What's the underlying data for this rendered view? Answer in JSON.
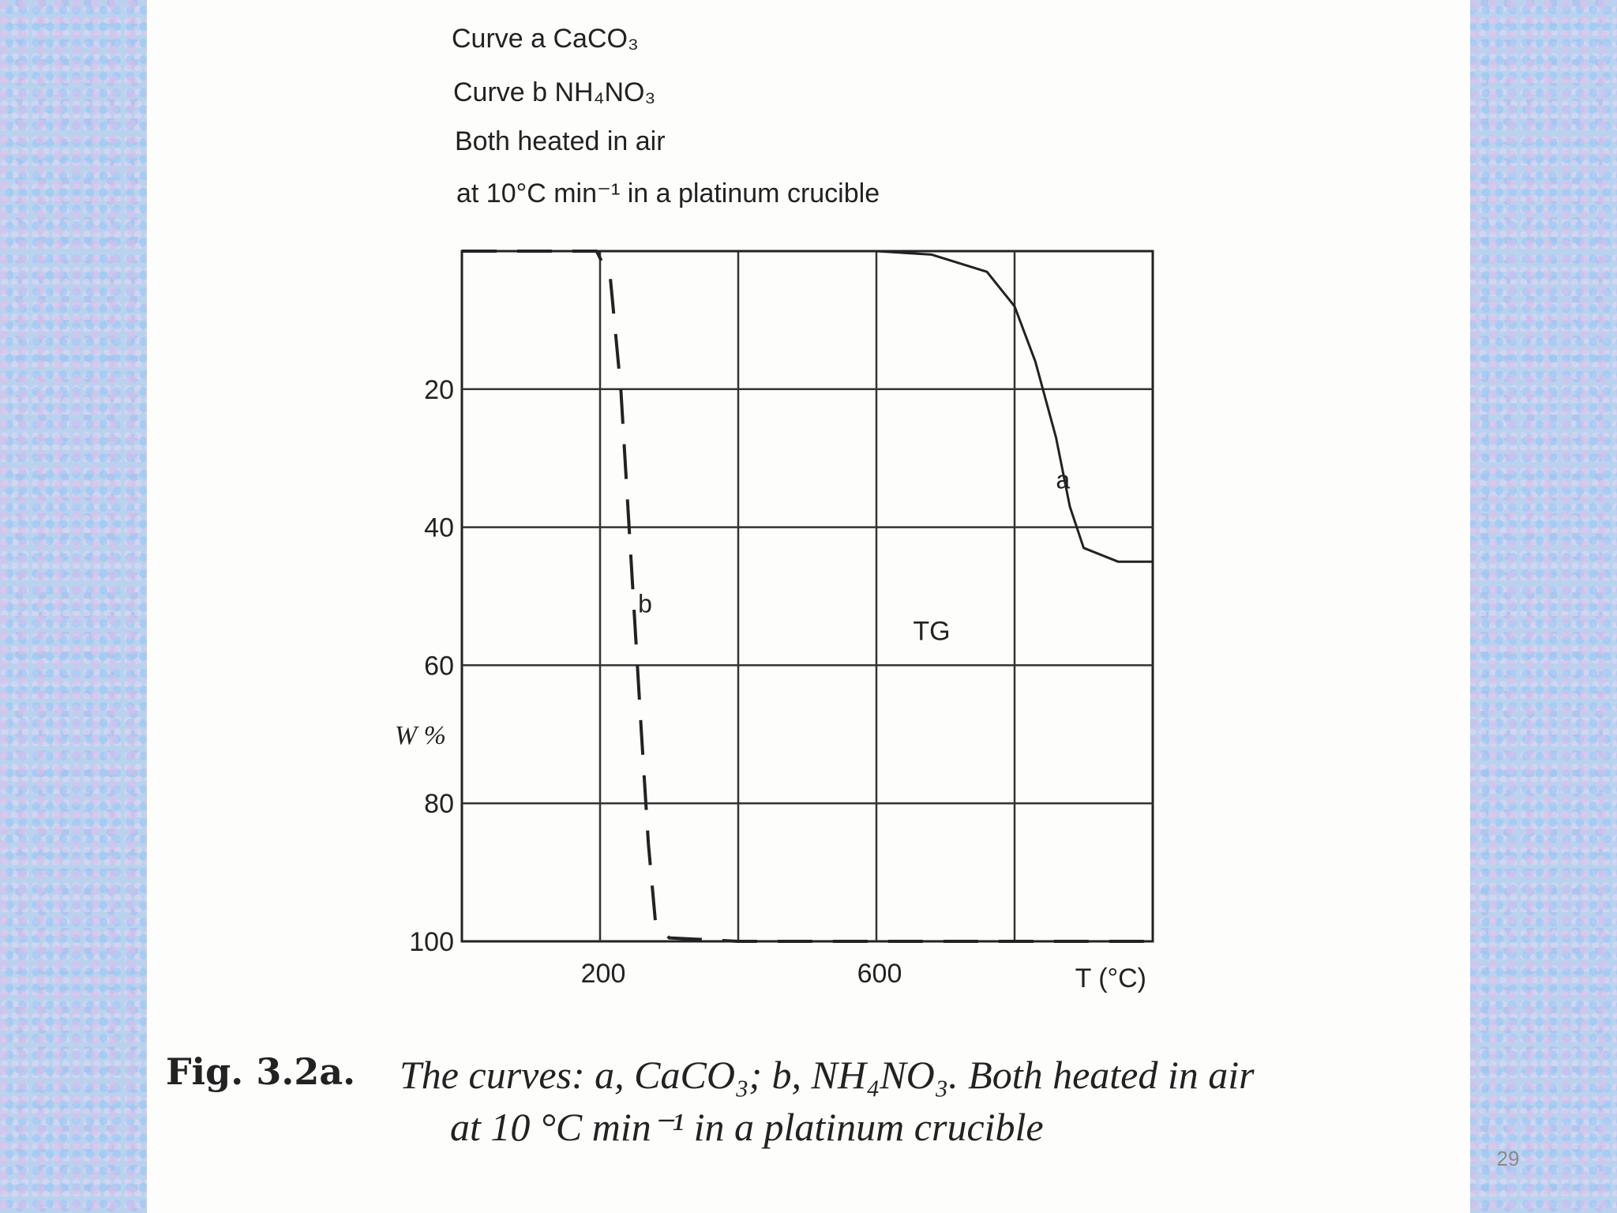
{
  "slide_number": "29",
  "header_lines": [
    "Curve a  CaCO₃",
    "Curve b  NH₄NO₃",
    "Both heated in air",
    "at 10°C min⁻¹ in a platinum crucible"
  ],
  "caption": {
    "label": "Fig. 3.2a.",
    "line1": "The curves: a, CaCO₃; b, NH₄NO₃. Both heated in air",
    "line2": "at 10 °C min⁻¹ in a platinum crucible"
  },
  "colors": {
    "background_pattern": "#b9d3ee",
    "slide": "#fdfdfb",
    "ink": "#222222"
  },
  "chart_data": {
    "type": "line",
    "title": "",
    "xlabel": "T (°C)",
    "ylabel": "W %",
    "xlim": [
      0,
      1000
    ],
    "ylim": [
      0,
      100
    ],
    "y_inverted": true,
    "x_ticks": [
      200,
      600
    ],
    "x_tick_labels": [
      "200",
      "600"
    ],
    "y_ticks": [
      20,
      40,
      60,
      80,
      100
    ],
    "y_tick_labels": [
      "20",
      "40",
      "60",
      "80",
      "100"
    ],
    "x_gridlines": [
      200,
      400,
      600,
      800
    ],
    "y_gridlines": [
      20,
      40,
      60,
      80
    ],
    "grid": true,
    "annotation": "TG",
    "series": [
      {
        "name": "a",
        "style": "solid",
        "points": [
          [
            0,
            0
          ],
          [
            200,
            0
          ],
          [
            400,
            0
          ],
          [
            600,
            0
          ],
          [
            680,
            0.5
          ],
          [
            760,
            3
          ],
          [
            800,
            8
          ],
          [
            830,
            16
          ],
          [
            860,
            27
          ],
          [
            880,
            37
          ],
          [
            900,
            43
          ],
          [
            950,
            45
          ],
          [
            1000,
            45
          ]
        ]
      },
      {
        "name": "b",
        "style": "dashed",
        "points": [
          [
            0,
            0
          ],
          [
            195,
            0
          ],
          [
            215,
            4
          ],
          [
            230,
            20
          ],
          [
            245,
            45
          ],
          [
            260,
            70
          ],
          [
            270,
            86
          ],
          [
            280,
            97
          ],
          [
            300,
            99.5
          ],
          [
            400,
            100
          ],
          [
            600,
            100
          ],
          [
            1000,
            100
          ]
        ]
      }
    ]
  }
}
